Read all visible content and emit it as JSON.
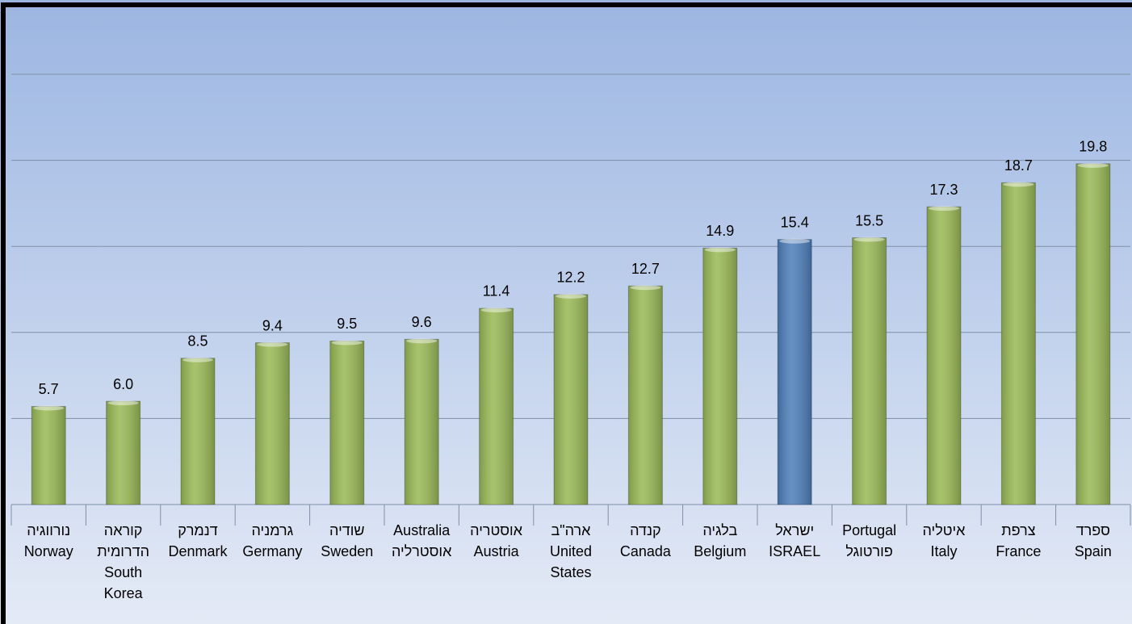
{
  "chart_data": {
    "type": "bar",
    "categories": [
      [
        "נורווגיה",
        "Norway"
      ],
      [
        "קוראה",
        "הדרומית",
        "South",
        "Korea"
      ],
      [
        "דנמרק",
        "Denmark"
      ],
      [
        "גרמניה",
        "Germany"
      ],
      [
        "שודיה",
        "Sweden"
      ],
      [
        "Australia",
        "אוסטרליה"
      ],
      [
        "אוסטריה",
        "Austria"
      ],
      [
        "ארה\"ב",
        "United",
        "States"
      ],
      [
        "קנדה",
        "Canada"
      ],
      [
        "בלגיה",
        "Belgium"
      ],
      [
        "ישראל",
        "ISRAEL"
      ],
      [
        "Portugal",
        "פורטוגל"
      ],
      [
        "איטליה",
        "Italy"
      ],
      [
        "צרפת",
        "France"
      ],
      [
        "ספרד",
        "Spain"
      ]
    ],
    "values": [
      5.7,
      6.0,
      8.5,
      9.4,
      9.5,
      9.6,
      11.4,
      12.2,
      12.7,
      14.9,
      15.4,
      15.5,
      17.3,
      18.7,
      19.8
    ],
    "value_labels": [
      "5.7",
      "6.0",
      "8.5",
      "9.4",
      "9.5",
      "9.6",
      "11.4",
      "12.2",
      "12.7",
      "14.9",
      "15.4",
      "15.5",
      "17.3",
      "18.7",
      "19.8"
    ],
    "colors": [
      "#9bbb59",
      "#9bbb59",
      "#9bbb59",
      "#9bbb59",
      "#9bbb59",
      "#9bbb59",
      "#9bbb59",
      "#9bbb59",
      "#9bbb59",
      "#9bbb59",
      "#4f81bd",
      "#9bbb59",
      "#9bbb59",
      "#9bbb59",
      "#9bbb59"
    ],
    "ylim": [
      0,
      25
    ],
    "yticks": [
      0,
      5,
      10,
      15,
      20,
      25
    ],
    "grid": true
  }
}
